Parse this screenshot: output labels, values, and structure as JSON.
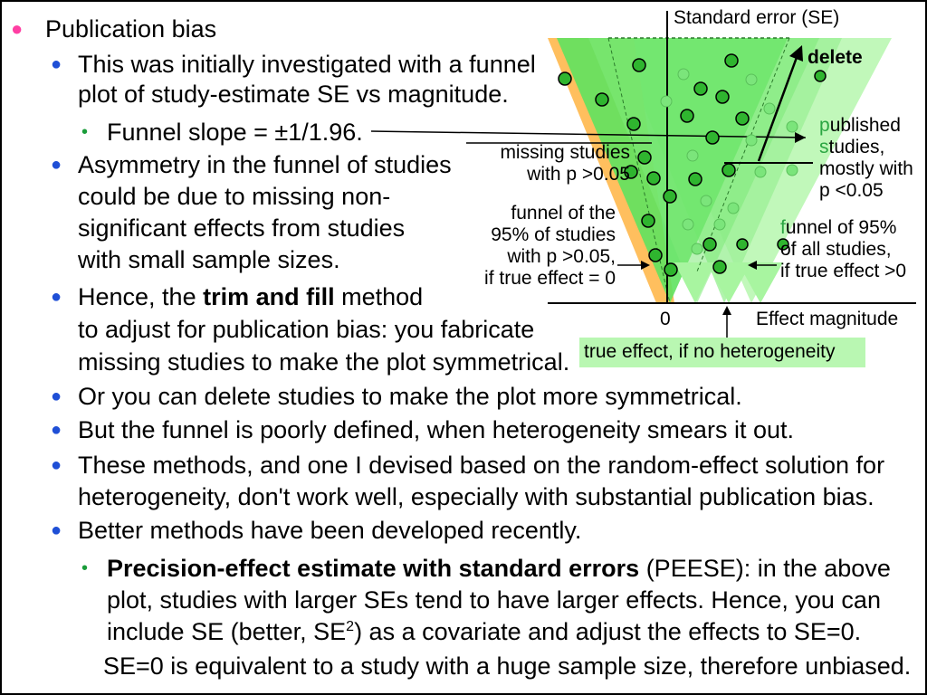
{
  "bullets": {
    "pub_bias": "Publication bias",
    "funnel_plot_1": "This was initially investigated with a funnel",
    "funnel_plot_2": "plot of study-estimate SE vs magnitude.",
    "funnel_slope": "Funnel slope = ±1/1.96.",
    "asym_1": "Asymmetry in the funnel of studies",
    "asym_2": "could be due to missing non-",
    "asym_3": "significant effects from studies",
    "asym_4": "with small sample sizes.",
    "hence_pre": "Hence, the ",
    "hence_bold": "trim and fill",
    "hence_post": " method",
    "hence_2": "to adjust for publication bias: you fabricate",
    "hence_3": "missing studies to make the plot symmetrical.",
    "delete_line": "Or you can delete studies to make the plot more symmetrical.",
    "poorly_line": "But the funnel is poorly defined, when heterogeneity smears it out.",
    "methods_1": "These methods, and one I devised based on the random-effect solution for",
    "methods_2": "heterogeneity, don't work well, especially with substantial publication bias.",
    "better": "Better methods have been developed recently.",
    "peese_bold": "Precision-effect estimate with standard errors",
    "peese_post": " (PEESE): in the above",
    "peese_2": "plot, studies with larger SEs tend to have larger effects. Hence, you can",
    "peese_3_pre": "include SE (better, SE",
    "peese_3_sup": "2",
    "peese_3_post": ") as a covariate and adjust the effects to SE=0.",
    "peese_4": "SE=0 is equivalent to a study with a huge sample size, therefore unbiased."
  },
  "figure": {
    "y_axis_label": "Standard error (SE)",
    "x_axis_label": "Effect magnitude",
    "zero_label": "0",
    "delete_label": "delete",
    "missing_1": "missing studies",
    "missing_2": "with p >0.05",
    "funnel95_1": "funnel of the",
    "funnel95_2": "95% of studies",
    "funnel95_3": "with p >0.05,",
    "funnel95_4": "if true effect = 0",
    "published_1": "published",
    "published_2": "studies,",
    "published_3": "mostly with",
    "published_4": "p <0.05",
    "funnel_all_1": "funnel of 95%",
    "funnel_all_2": "of all studies,",
    "funnel_all_3": "if true effect >0",
    "true_effect": "true effect, if no heterogeneity"
  },
  "colors": {
    "orange_funnel": "#ffb347",
    "green_funnel": "#5ee35e",
    "light_green": "#a8f5a0",
    "dot_fill": "#2fb52f",
    "bullet_pink": "#ff3fa3",
    "bullet_blue": "#1f4fd6",
    "bullet_green": "#1a9c3a"
  }
}
